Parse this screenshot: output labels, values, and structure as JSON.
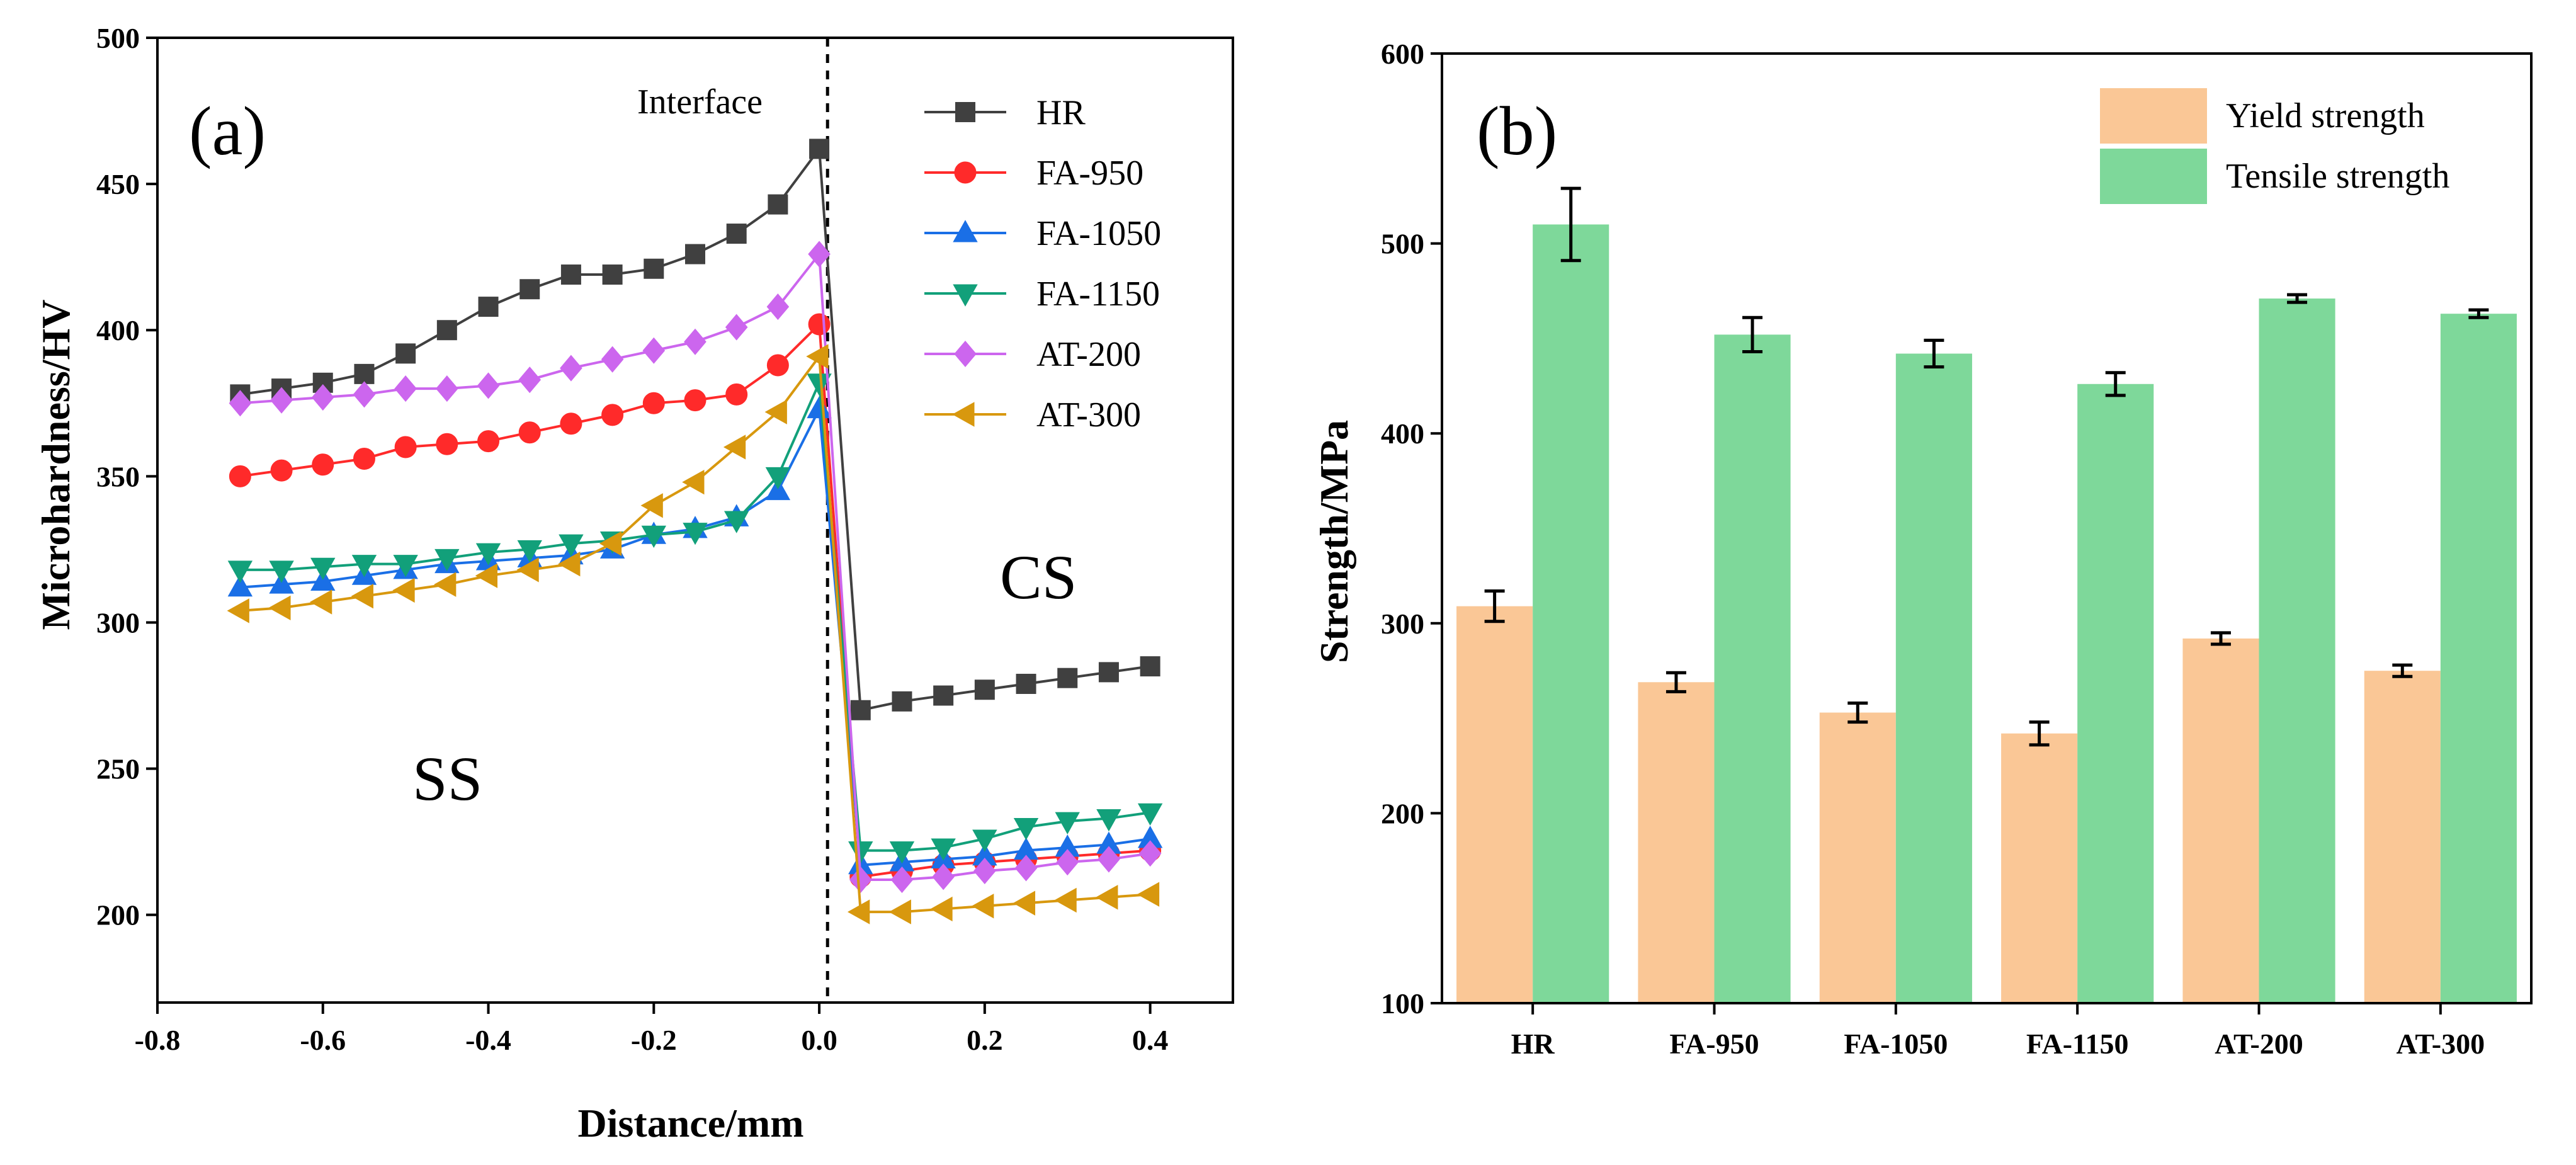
{
  "chart_data": [
    {
      "type": "line",
      "panel_label": "(a)",
      "xlabel": "Distance/mm",
      "ylabel": "Microhardness/HV",
      "xlim": [
        -0.8,
        0.5
      ],
      "ylim": [
        170,
        500
      ],
      "xticks": [
        "-0.8",
        "-0.6",
        "-0.4",
        "-0.2",
        "0.0",
        "0.2",
        "0.4"
      ],
      "yticks": [
        "200",
        "250",
        "300",
        "350",
        "400",
        "450",
        "500"
      ],
      "legend_position": "top-right",
      "annotations": {
        "interface": "Interface",
        "ss": "SS",
        "cs": "CS"
      },
      "interface_x": 0.01,
      "x": [
        -0.7,
        -0.65,
        -0.6,
        -0.55,
        -0.5,
        -0.45,
        -0.4,
        -0.35,
        -0.3,
        -0.25,
        -0.2,
        -0.15,
        -0.1,
        -0.05,
        0.0,
        0.05,
        0.1,
        0.15,
        0.2,
        0.25,
        0.3,
        0.35,
        0.4
      ],
      "series": [
        {
          "name": "HR",
          "color": "#404040",
          "marker": "square",
          "values": [
            378,
            380,
            382,
            385,
            392,
            400,
            408,
            414,
            419,
            419,
            421,
            426,
            433,
            443,
            462,
            270,
            273,
            275,
            277,
            279,
            281,
            283,
            285
          ]
        },
        {
          "name": "FA-950",
          "color": "#ff2a2a",
          "marker": "circle",
          "values": [
            350,
            352,
            354,
            356,
            360,
            361,
            362,
            365,
            368,
            371,
            375,
            376,
            378,
            388,
            402,
            213,
            215,
            217,
            218,
            219,
            220,
            221,
            222
          ]
        },
        {
          "name": "FA-1050",
          "color": "#1a6fe6",
          "marker": "triangle-up",
          "values": [
            312,
            313,
            314,
            316,
            318,
            320,
            321,
            322,
            323,
            325,
            330,
            332,
            336,
            345,
            373,
            217,
            218,
            219,
            220,
            222,
            223,
            224,
            226
          ]
        },
        {
          "name": "FA-1150",
          "color": "#12a07a",
          "marker": "triangle-down",
          "values": [
            318,
            318,
            319,
            320,
            320,
            322,
            324,
            325,
            327,
            328,
            330,
            331,
            335,
            350,
            382,
            222,
            222,
            223,
            226,
            230,
            232,
            233,
            235
          ]
        },
        {
          "name": "AT-200",
          "color": "#cc66ee",
          "marker": "diamond",
          "values": [
            375,
            376,
            377,
            378,
            380,
            380,
            381,
            383,
            387,
            390,
            393,
            396,
            401,
            408,
            426,
            212,
            212,
            213,
            215,
            216,
            218,
            219,
            221
          ]
        },
        {
          "name": "AT-300",
          "color": "#d8980e",
          "marker": "triangle-left",
          "values": [
            304,
            305,
            307,
            309,
            311,
            313,
            316,
            318,
            320,
            327,
            340,
            348,
            360,
            372,
            391,
            201,
            201,
            202,
            203,
            204,
            205,
            206,
            207
          ]
        }
      ]
    },
    {
      "type": "bar",
      "panel_label": "(b)",
      "xlabel": "",
      "ylabel": "Strength/MPa",
      "ylim": [
        100,
        600
      ],
      "yticks": [
        "100",
        "200",
        "300",
        "400",
        "500",
        "600"
      ],
      "categories": [
        "HR",
        "FA-950",
        "FA-1050",
        "FA-1150",
        "AT-200",
        "AT-300"
      ],
      "legend_position": "top-right",
      "series": [
        {
          "name": "Yield strength",
          "color": "#fac796",
          "values": [
            309,
            269,
            253,
            242,
            292,
            275
          ],
          "errors": [
            8,
            5,
            5,
            6,
            3,
            3
          ]
        },
        {
          "name": "Tensile strength",
          "color": "#7ed89a",
          "values": [
            510,
            452,
            442,
            426,
            471,
            463
          ],
          "errors": [
            19,
            9,
            7,
            6,
            2,
            2
          ]
        }
      ]
    }
  ]
}
